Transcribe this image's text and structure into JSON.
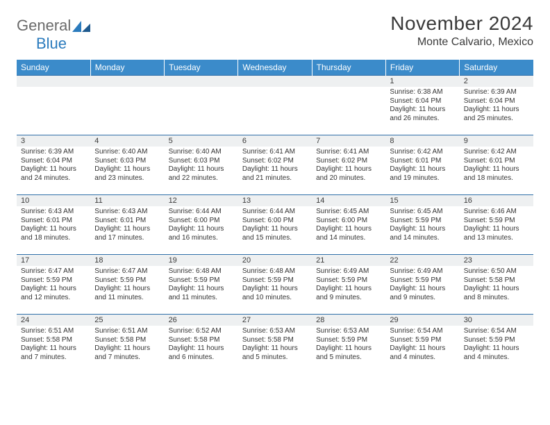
{
  "logo": {
    "text_general": "General",
    "text_blue": "Blue"
  },
  "title": "November 2024",
  "location": "Monte Calvario, Mexico",
  "colors": {
    "header_bg": "#3b8bca",
    "header_fg": "#ffffff",
    "row_border": "#2f6fa8",
    "daynum_bg": "#eef0f1",
    "text": "#333333",
    "logo_blue": "#2b7bbd",
    "logo_gray": "#6a6a6a"
  },
  "weekdays": [
    "Sunday",
    "Monday",
    "Tuesday",
    "Wednesday",
    "Thursday",
    "Friday",
    "Saturday"
  ],
  "weeks": [
    [
      null,
      null,
      null,
      null,
      null,
      {
        "n": "1",
        "sr": "6:38 AM",
        "ss": "6:04 PM",
        "dl": "11 hours and 26 minutes."
      },
      {
        "n": "2",
        "sr": "6:39 AM",
        "ss": "6:04 PM",
        "dl": "11 hours and 25 minutes."
      }
    ],
    [
      {
        "n": "3",
        "sr": "6:39 AM",
        "ss": "6:04 PM",
        "dl": "11 hours and 24 minutes."
      },
      {
        "n": "4",
        "sr": "6:40 AM",
        "ss": "6:03 PM",
        "dl": "11 hours and 23 minutes."
      },
      {
        "n": "5",
        "sr": "6:40 AM",
        "ss": "6:03 PM",
        "dl": "11 hours and 22 minutes."
      },
      {
        "n": "6",
        "sr": "6:41 AM",
        "ss": "6:02 PM",
        "dl": "11 hours and 21 minutes."
      },
      {
        "n": "7",
        "sr": "6:41 AM",
        "ss": "6:02 PM",
        "dl": "11 hours and 20 minutes."
      },
      {
        "n": "8",
        "sr": "6:42 AM",
        "ss": "6:01 PM",
        "dl": "11 hours and 19 minutes."
      },
      {
        "n": "9",
        "sr": "6:42 AM",
        "ss": "6:01 PM",
        "dl": "11 hours and 18 minutes."
      }
    ],
    [
      {
        "n": "10",
        "sr": "6:43 AM",
        "ss": "6:01 PM",
        "dl": "11 hours and 18 minutes."
      },
      {
        "n": "11",
        "sr": "6:43 AM",
        "ss": "6:01 PM",
        "dl": "11 hours and 17 minutes."
      },
      {
        "n": "12",
        "sr": "6:44 AM",
        "ss": "6:00 PM",
        "dl": "11 hours and 16 minutes."
      },
      {
        "n": "13",
        "sr": "6:44 AM",
        "ss": "6:00 PM",
        "dl": "11 hours and 15 minutes."
      },
      {
        "n": "14",
        "sr": "6:45 AM",
        "ss": "6:00 PM",
        "dl": "11 hours and 14 minutes."
      },
      {
        "n": "15",
        "sr": "6:45 AM",
        "ss": "5:59 PM",
        "dl": "11 hours and 14 minutes."
      },
      {
        "n": "16",
        "sr": "6:46 AM",
        "ss": "5:59 PM",
        "dl": "11 hours and 13 minutes."
      }
    ],
    [
      {
        "n": "17",
        "sr": "6:47 AM",
        "ss": "5:59 PM",
        "dl": "11 hours and 12 minutes."
      },
      {
        "n": "18",
        "sr": "6:47 AM",
        "ss": "5:59 PM",
        "dl": "11 hours and 11 minutes."
      },
      {
        "n": "19",
        "sr": "6:48 AM",
        "ss": "5:59 PM",
        "dl": "11 hours and 11 minutes."
      },
      {
        "n": "20",
        "sr": "6:48 AM",
        "ss": "5:59 PM",
        "dl": "11 hours and 10 minutes."
      },
      {
        "n": "21",
        "sr": "6:49 AM",
        "ss": "5:59 PM",
        "dl": "11 hours and 9 minutes."
      },
      {
        "n": "22",
        "sr": "6:49 AM",
        "ss": "5:59 PM",
        "dl": "11 hours and 9 minutes."
      },
      {
        "n": "23",
        "sr": "6:50 AM",
        "ss": "5:58 PM",
        "dl": "11 hours and 8 minutes."
      }
    ],
    [
      {
        "n": "24",
        "sr": "6:51 AM",
        "ss": "5:58 PM",
        "dl": "11 hours and 7 minutes."
      },
      {
        "n": "25",
        "sr": "6:51 AM",
        "ss": "5:58 PM",
        "dl": "11 hours and 7 minutes."
      },
      {
        "n": "26",
        "sr": "6:52 AM",
        "ss": "5:58 PM",
        "dl": "11 hours and 6 minutes."
      },
      {
        "n": "27",
        "sr": "6:53 AM",
        "ss": "5:58 PM",
        "dl": "11 hours and 5 minutes."
      },
      {
        "n": "28",
        "sr": "6:53 AM",
        "ss": "5:59 PM",
        "dl": "11 hours and 5 minutes."
      },
      {
        "n": "29",
        "sr": "6:54 AM",
        "ss": "5:59 PM",
        "dl": "11 hours and 4 minutes."
      },
      {
        "n": "30",
        "sr": "6:54 AM",
        "ss": "5:59 PM",
        "dl": "11 hours and 4 minutes."
      }
    ]
  ],
  "labels": {
    "sunrise": "Sunrise: ",
    "sunset": "Sunset: ",
    "daylight": "Daylight: "
  }
}
